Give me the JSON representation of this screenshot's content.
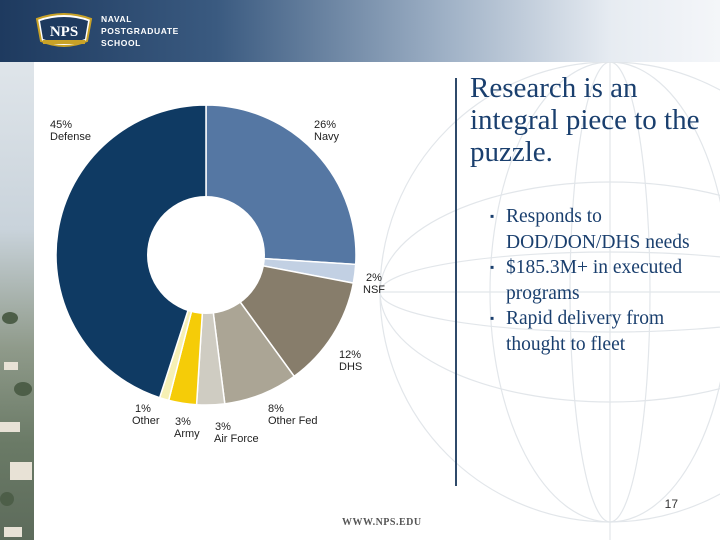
{
  "header": {
    "logo_seal_text": "NPS",
    "logo_lines": [
      "NAVAL",
      "POSTGRADUATE",
      "SCHOOL"
    ]
  },
  "slide": {
    "title": "Research is an integral piece to the puzzle.",
    "bullets": [
      "Responds to DOD/DON/DHS needs",
      "$185.3M+ in executed programs",
      "Rapid delivery from thought to fleet"
    ],
    "page_number": "17",
    "footer_url": "WWW.NPS.EDU"
  },
  "colors": {
    "title": "#1a3f6e",
    "defense": "#0f3a63",
    "navy": "#5577a3",
    "nsf": "#c2d0e3",
    "dhs": "#877d6b",
    "other_fed": "#aba595",
    "air_force": "#cfccc2",
    "army": "#f5cc08",
    "other": "#f6f0b5"
  },
  "chart_data": {
    "type": "pie",
    "style": "donut",
    "title": "",
    "slices": [
      {
        "name": "Navy",
        "value": 26,
        "pct_label": "26%",
        "color": "#5577a3"
      },
      {
        "name": "NSF",
        "value": 2,
        "pct_label": "2%",
        "color": "#c2d0e3"
      },
      {
        "name": "DHS",
        "value": 12,
        "pct_label": "12%",
        "color": "#877d6b"
      },
      {
        "name": "Other Fed",
        "value": 8,
        "pct_label": "8%",
        "color": "#aba595"
      },
      {
        "name": "Air Force",
        "value": 3,
        "pct_label": "3%",
        "color": "#cfccc2"
      },
      {
        "name": "Army",
        "value": 3,
        "pct_label": "3%",
        "color": "#f5cc08"
      },
      {
        "name": "Other",
        "value": 1,
        "pct_label": "1%",
        "color": "#f6f0b5"
      },
      {
        "name": "Defense",
        "value": 45,
        "pct_label": "45%",
        "color": "#0f3a63"
      }
    ]
  }
}
